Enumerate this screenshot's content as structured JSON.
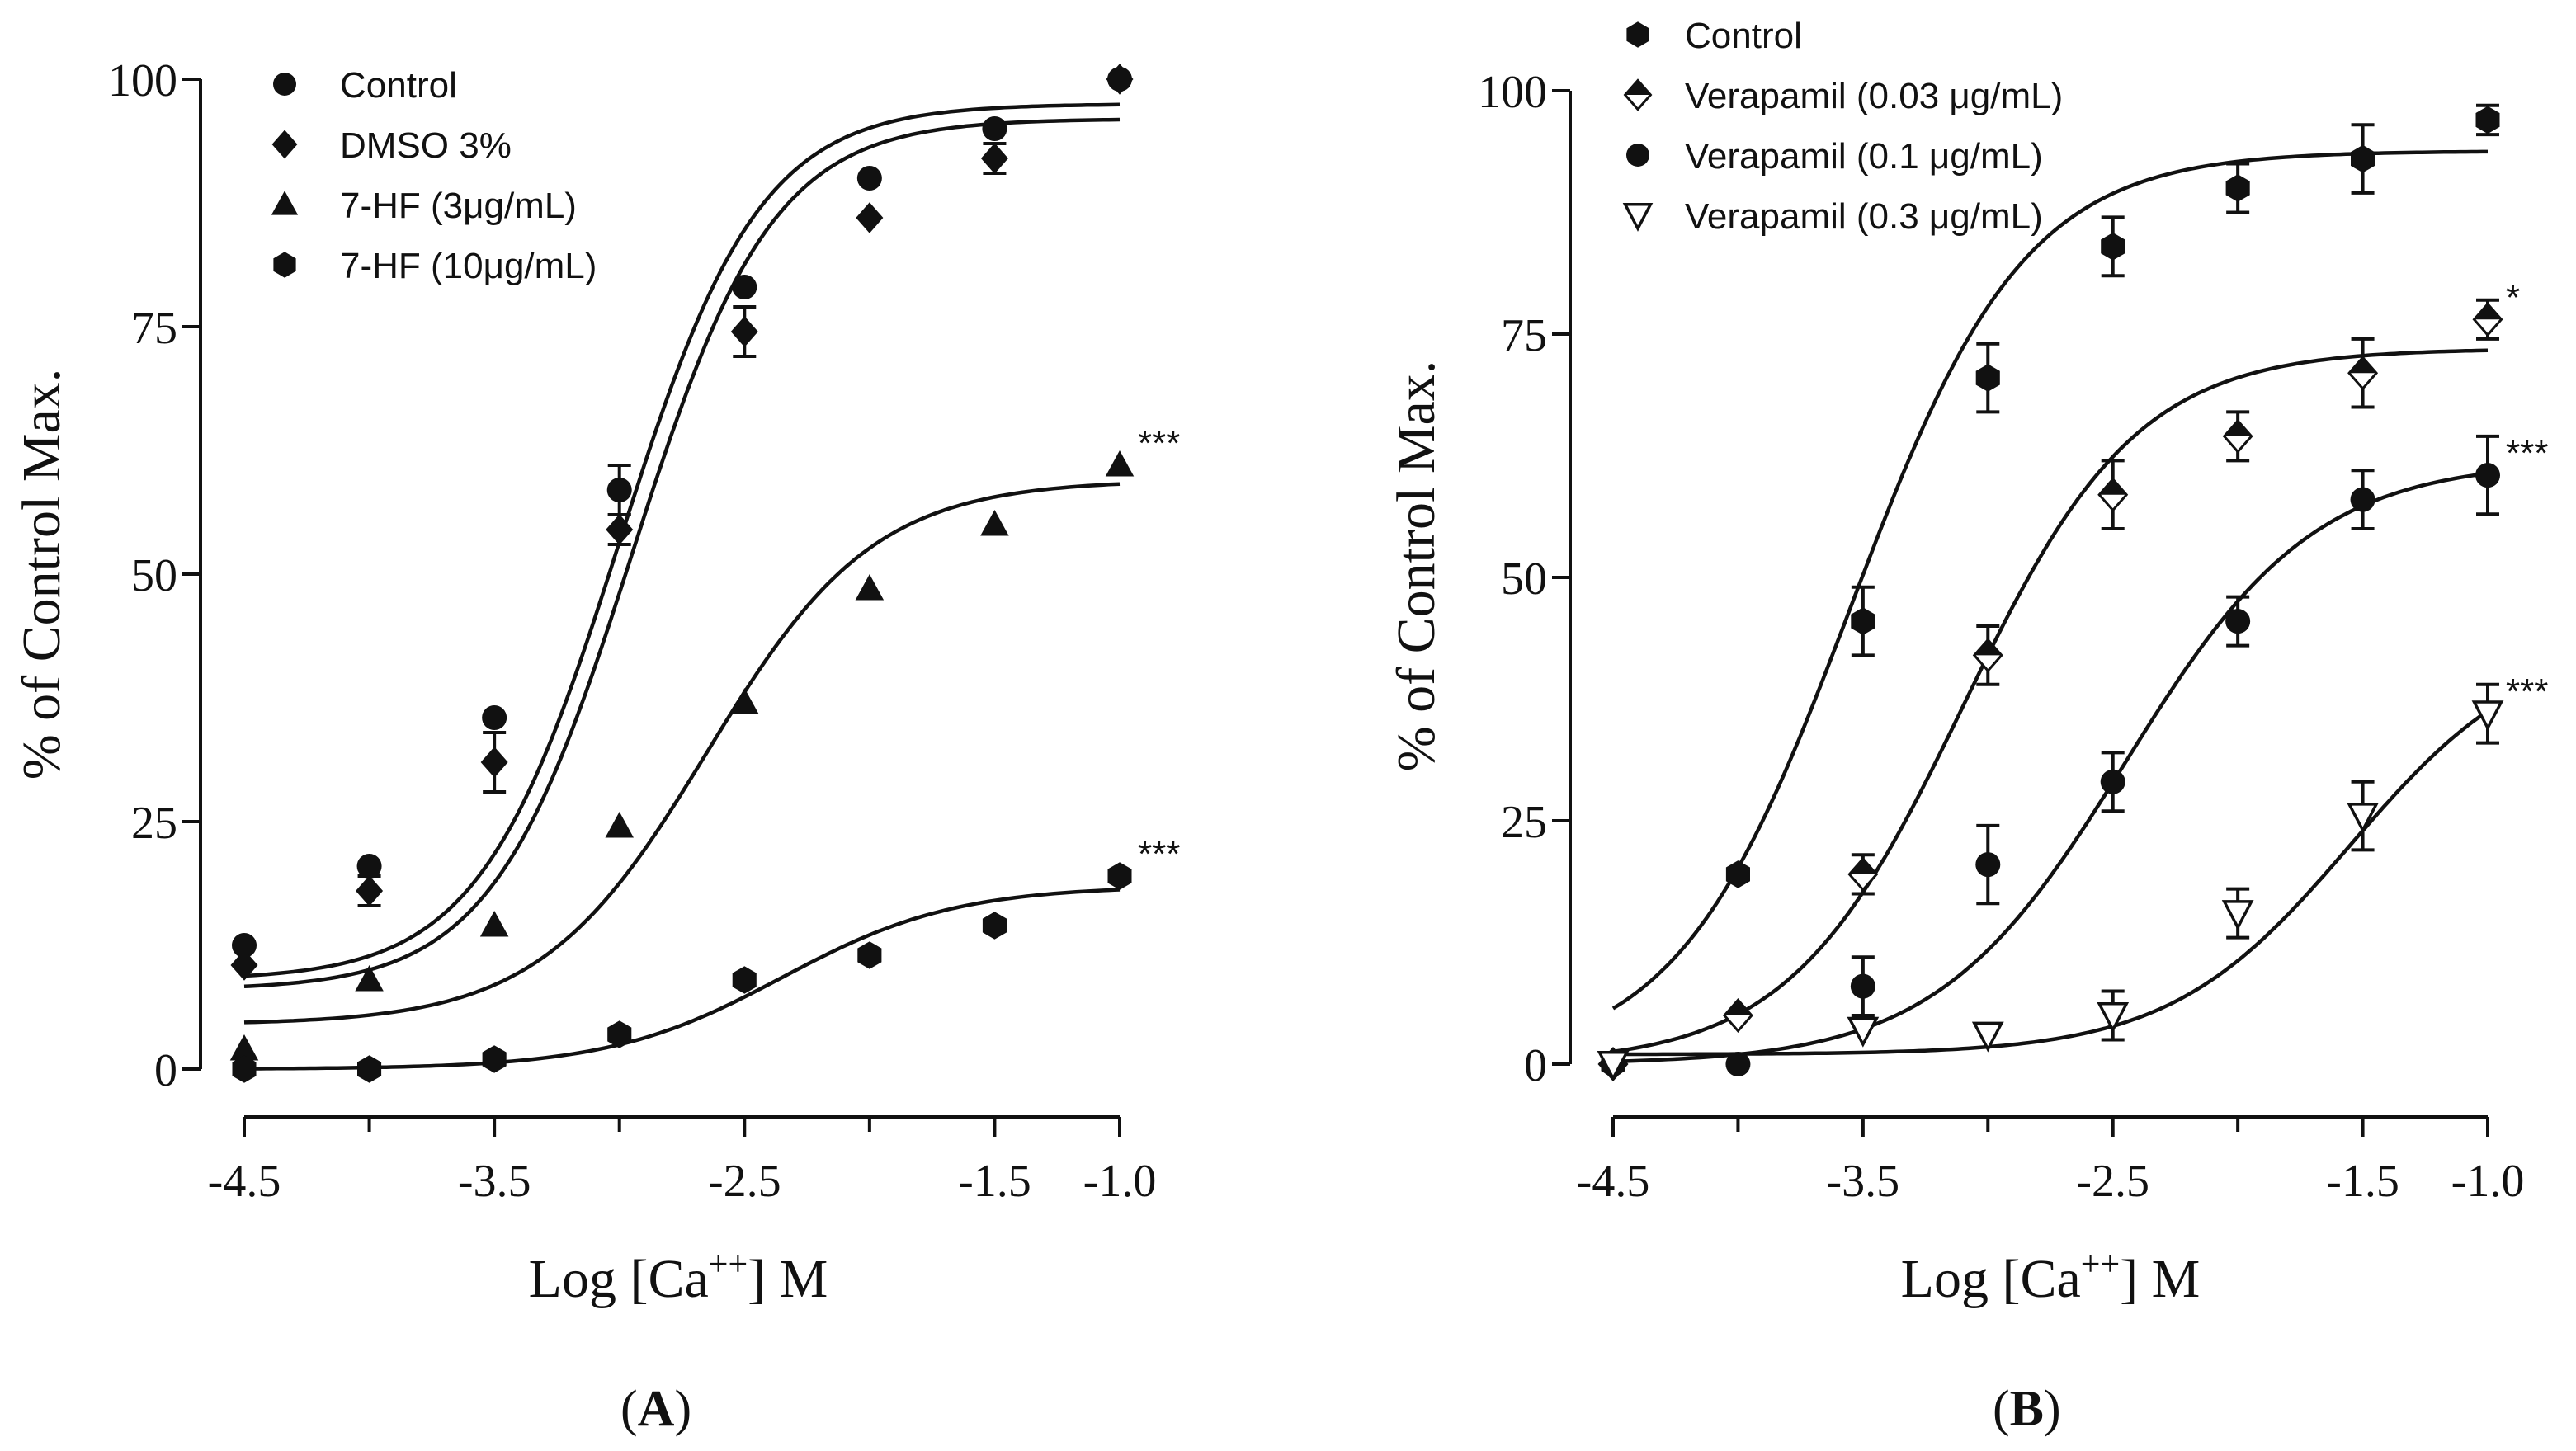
{
  "panels": [
    {
      "panel_label": "(A)",
      "chart_data": {
        "type": "line",
        "title": "",
        "xlabel_main": "Log [Ca",
        "xlabel_sup": "++",
        "xlabel_end": "] M",
        "ylabel": "% of Control Max.",
        "xlim": [
          -4.5,
          -1.0
        ],
        "ylim": [
          0,
          100
        ],
        "xticks": [
          -4.5,
          -3.5,
          -2.5,
          -1.5,
          -1.0
        ],
        "xtick_labels": [
          "-4.5",
          "-3.5",
          "-2.5",
          "-1.5",
          "-1.0"
        ],
        "yticks": [
          0,
          25,
          50,
          75,
          100
        ],
        "ytick_labels": [
          "0",
          "25",
          "50",
          "75",
          "100"
        ],
        "legend_position": "top-left",
        "series": [
          {
            "name": "Control",
            "marker": "circle",
            "x": [
              -4.5,
              -4.0,
              -3.5,
              -3.0,
              -2.5,
              -2.0,
              -1.5,
              -1.0
            ],
            "values": [
              12.5,
              20.5,
              35.5,
              58.5,
              79.0,
              90.0,
              95.0,
              100.0
            ],
            "errors": [
              0,
              0,
              0,
              2.5,
              0,
              0,
              0,
              0
            ],
            "fit": {
              "bottom": 9,
              "top": 97.5,
              "logEC50": -3.0,
              "hill": 1.55
            }
          },
          {
            "name": "DMSO 3%",
            "marker": "diamond",
            "x": [
              -4.5,
              -4.0,
              -3.5,
              -3.0,
              -2.5,
              -2.0,
              -1.5,
              -1.0
            ],
            "values": [
              10.5,
              18.0,
              31.0,
              54.5,
              74.5,
              86.0,
              92.0,
              100.0
            ],
            "errors": [
              0,
              1.5,
              3.0,
              1.5,
              2.5,
              0,
              1.5,
              0
            ],
            "fit": {
              "bottom": 8,
              "top": 96,
              "logEC50": -2.95,
              "hill": 1.55
            }
          },
          {
            "name": "7-HF (3μg/mL)",
            "marker": "triangle",
            "x": [
              -4.5,
              -4.0,
              -3.5,
              -3.0,
              -2.5,
              -2.0,
              -1.5,
              -1.0
            ],
            "values": [
              2.0,
              9.0,
              14.5,
              24.5,
              37.0,
              48.5,
              55.0,
              61.0
            ],
            "errors": [
              0,
              0,
              0,
              0,
              0,
              0,
              0,
              0
            ],
            "fit": {
              "bottom": 4.5,
              "top": 59.5,
              "logEC50": -2.65,
              "hill": 1.3
            }
          },
          {
            "name": "7-HF (10μg/mL)",
            "marker": "hexagon",
            "x": [
              -4.5,
              -4.0,
              -3.5,
              -3.0,
              -2.5,
              -2.0,
              -1.5,
              -1.0
            ],
            "values": [
              0.0,
              0.0,
              1.0,
              3.5,
              9.0,
              11.5,
              14.5,
              19.5
            ],
            "errors": [
              0,
              0,
              0,
              0,
              0,
              0,
              0,
              0
            ],
            "fit": {
              "bottom": 0,
              "top": 18.5,
              "logEC50": -2.35,
              "hill": 1.25
            }
          }
        ],
        "annotations": [
          {
            "x": -1.0,
            "y": 61,
            "text": "***"
          },
          {
            "x": -1.0,
            "y": 19.5,
            "text": "***"
          }
        ]
      }
    },
    {
      "panel_label": "(B)",
      "chart_data": {
        "type": "line",
        "title": "",
        "xlabel_main": "Log [Ca",
        "xlabel_sup": "++",
        "xlabel_end": "] M",
        "ylabel": "% of Control Max.",
        "xlim": [
          -4.5,
          -1.0
        ],
        "ylim": [
          0,
          100
        ],
        "xticks": [
          -4.5,
          -3.5,
          -2.5,
          -1.5,
          -1.0
        ],
        "xtick_labels": [
          "-4.5",
          "-3.5",
          "-2.5",
          "-1.5",
          "-1.0"
        ],
        "yticks": [
          0,
          25,
          50,
          75,
          100
        ],
        "ytick_labels": [
          "0",
          "25",
          "50",
          "75",
          "100"
        ],
        "legend_position": "top-left",
        "series": [
          {
            "name": "Control",
            "marker": "hexagon",
            "x": [
              -4.5,
              -4.0,
              -3.5,
              -3.0,
              -2.5,
              -2.0,
              -1.5,
              -1.0
            ],
            "values": [
              0.0,
              19.5,
              45.5,
              70.5,
              84.0,
              90.0,
              93.0,
              97.0
            ],
            "errors": [
              0,
              0,
              3.5,
              3.5,
              3.0,
              2.5,
              3.5,
              1.5
            ],
            "fit": {
              "bottom": 0,
              "top": 93.8,
              "logEC50": -3.55,
              "hill": 1.25
            }
          },
          {
            "name": "Verapamil (0.03 μg/mL)",
            "marker": "diamond-half",
            "x": [
              -4.5,
              -4.0,
              -3.5,
              -3.0,
              -2.5,
              -2.0,
              -1.5,
              -1.0
            ],
            "values": [
              0.0,
              5.0,
              19.5,
              42.0,
              58.5,
              64.5,
              71.0,
              76.5
            ],
            "errors": [
              0,
              0,
              2.0,
              3.0,
              3.5,
              2.5,
              3.5,
              2.0
            ],
            "fit": {
              "bottom": 0,
              "top": 73.5,
              "logEC50": -3.1,
              "hill": 1.25
            }
          },
          {
            "name": "Verapamil (0.1 μg/mL)",
            "marker": "circle",
            "x": [
              -4.5,
              -4.0,
              -3.5,
              -3.0,
              -2.5,
              -2.0,
              -1.5,
              -1.0
            ],
            "values": [
              0.0,
              0.0,
              8.0,
              20.5,
              29.0,
              45.5,
              58.0,
              60.5
            ],
            "errors": [
              0,
              0,
              3.0,
              4.0,
              3.0,
              2.5,
              3.0,
              4.0
            ],
            "fit": {
              "bottom": 0,
              "top": 62,
              "logEC50": -2.45,
              "hill": 1.15
            }
          },
          {
            "name": "Verapamil (0.3 μg/mL)",
            "marker": "triangle-down",
            "x": [
              -4.5,
              -3.5,
              -3.0,
              -2.5,
              -2.0,
              -1.5,
              -1.0
            ],
            "values": [
              0.0,
              3.5,
              3.0,
              5.0,
              15.5,
              25.5,
              36.0
            ],
            "errors": [
              0,
              0,
              0,
              2.5,
              2.5,
              3.5,
              3.0
            ],
            "fit": {
              "bottom": 1,
              "top": 44,
              "logEC50": -1.55,
              "hill": 1.2
            }
          }
        ],
        "annotations": [
          {
            "x": -1.0,
            "y": 76.5,
            "text": "*"
          },
          {
            "x": -1.0,
            "y": 60.5,
            "text": "***"
          },
          {
            "x": -1.0,
            "y": 36.0,
            "text": "***"
          }
        ]
      }
    }
  ]
}
